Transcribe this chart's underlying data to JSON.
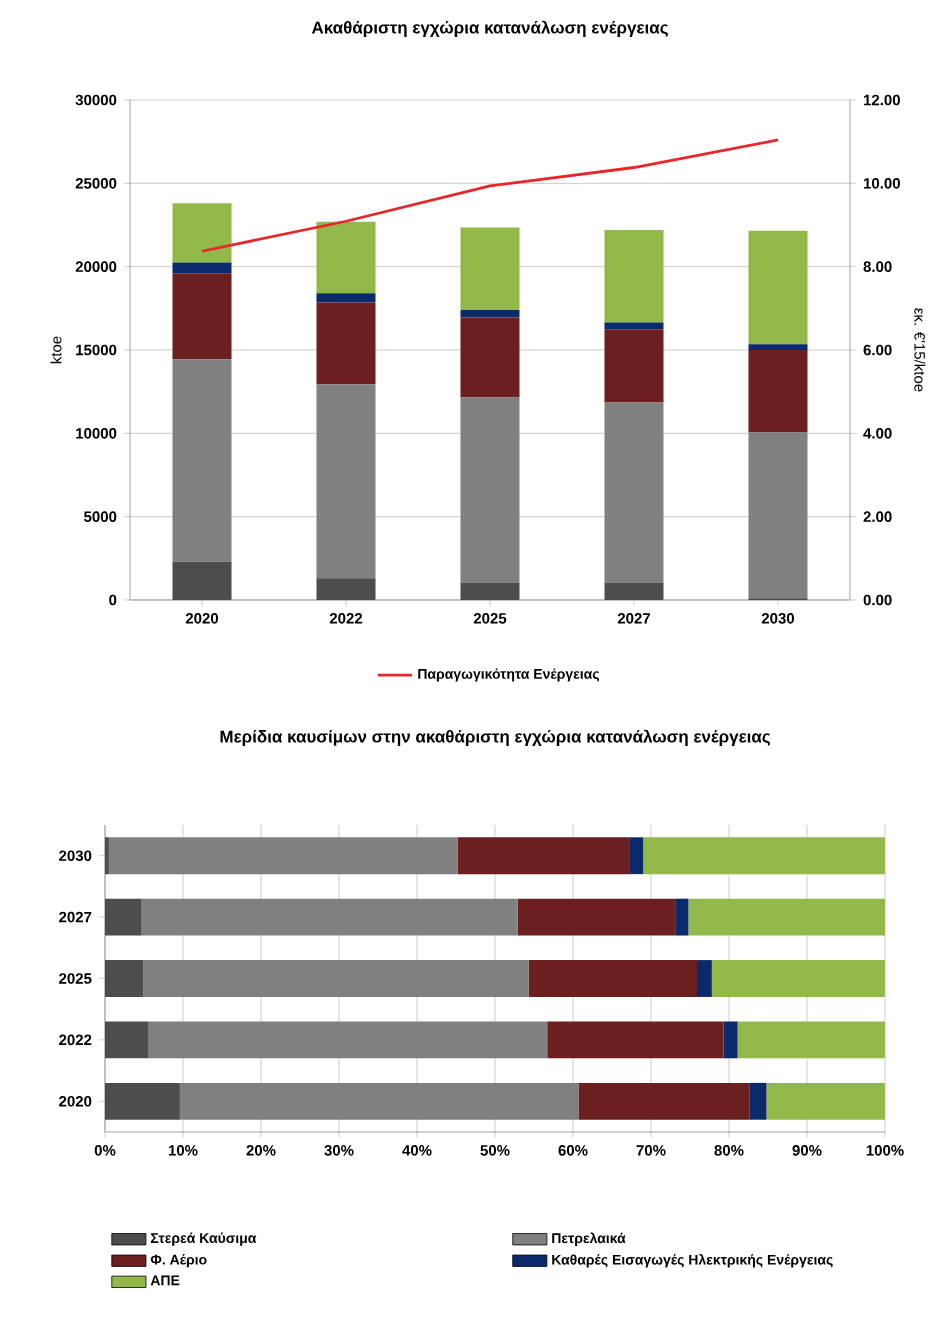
{
  "chart_data": [
    {
      "type": "bar",
      "stacked": true,
      "title": "Ακαθάριστη εγχώρια κατανάλωση ενέργειας",
      "ylabel": "ktoe",
      "y2label": "εκ. €'15/ktoe",
      "categories": [
        "2020",
        "2022",
        "2025",
        "2027",
        "2030"
      ],
      "series": [
        {
          "color": "#4d4d4d",
          "values": [
            2300,
            1300,
            1050,
            1050,
            100
          ]
        },
        {
          "color": "#808080",
          "values": [
            12150,
            11650,
            11100,
            10800,
            9950
          ]
        },
        {
          "color": "#6b1f1f",
          "values": [
            5150,
            4900,
            4800,
            4400,
            4950
          ]
        },
        {
          "color": "#0a2a6b",
          "values": [
            650,
            550,
            450,
            400,
            350
          ]
        },
        {
          "color": "#92b84a",
          "values": [
            3550,
            4300,
            4950,
            5550,
            6800
          ]
        },
        {
          "type": "line",
          "axis": "y2",
          "name": "Παραγωγικότητα Ενέργειας",
          "color": "#e8262a",
          "values": [
            8.37,
            9.09,
            9.94,
            10.38,
            11.04
          ]
        }
      ],
      "ylim": [
        0,
        30000
      ],
      "yticks": [
        0,
        5000,
        10000,
        15000,
        20000,
        25000,
        30000
      ],
      "y2lim": [
        0,
        12
      ],
      "y2ticks": [
        {
          "value": 0,
          "label": "0.00"
        },
        {
          "value": 2,
          "label": "2.00"
        },
        {
          "value": 4,
          "label": "4.00"
        },
        {
          "value": 6,
          "label": "6.00"
        },
        {
          "value": 8,
          "label": "8.00"
        },
        {
          "value": 10,
          "label": "10.00"
        },
        {
          "value": 12,
          "label": "12.00"
        }
      ],
      "grid": "y",
      "legend": "bottom"
    },
    {
      "type": "bar",
      "stacked": true,
      "orientation": "horizontal",
      "title": "Μερίδια καυσίμων στην ακαθάριστη εγχώρια κατανάλωση ενέργειας",
      "categories": [
        "2030",
        "2027",
        "2025",
        "2022",
        "2020"
      ],
      "series": [
        {
          "name": "Στερεά Καύσιμα",
          "color": "#4d4d4d",
          "values": [
            0.5,
            4.7,
            4.9,
            5.6,
            9.6
          ]
        },
        {
          "name": "Πετρελαικά",
          "color": "#808080",
          "values": [
            44.7,
            48.2,
            49.4,
            51.1,
            51.1
          ]
        },
        {
          "name": "Φ. Αέριο",
          "color": "#6b1f1f",
          "values": [
            22.1,
            20.2,
            21.6,
            22.6,
            21.9
          ]
        },
        {
          "name": "Καθαρές Εισαγωγές Ηλεκτρικής Ενέργειας",
          "color": "#0a2a6b",
          "values": [
            1.7,
            1.7,
            1.9,
            1.8,
            2.2
          ]
        },
        {
          "name": "ΑΠΕ",
          "color": "#92b84a",
          "values": [
            31.0,
            25.2,
            22.2,
            18.9,
            15.2
          ]
        }
      ],
      "xlim": [
        0,
        100
      ],
      "xticks": [
        {
          "value": 0,
          "label": "0%"
        },
        {
          "value": 10,
          "label": "10%"
        },
        {
          "value": 20,
          "label": "20%"
        },
        {
          "value": 30,
          "label": "30%"
        },
        {
          "value": 40,
          "label": "40%"
        },
        {
          "value": 50,
          "label": "50%"
        },
        {
          "value": 60,
          "label": "60%"
        },
        {
          "value": 70,
          "label": "70%"
        },
        {
          "value": 80,
          "label": "80%"
        },
        {
          "value": 90,
          "label": "90%"
        },
        {
          "value": 100,
          "label": "100%"
        }
      ],
      "grid": "x",
      "legend": "bottom"
    }
  ]
}
